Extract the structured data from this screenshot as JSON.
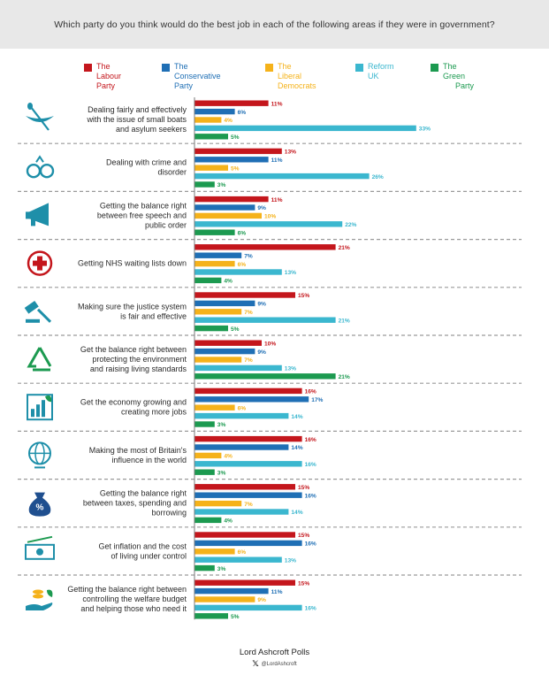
{
  "header": {
    "question": "Which party do you think would do the best job in each of the following areas if they were in government?"
  },
  "colors": {
    "labour": "#c4161c",
    "conservative": "#1f6fb5",
    "libdem": "#f5b21a",
    "reform": "#3bb7cf",
    "green": "#1c9a50",
    "icon": "#1e8fa9",
    "divider": "#9a9a9a"
  },
  "legend": [
    {
      "line1": "The Labour",
      "line2": "Party",
      "color": "#c4161c"
    },
    {
      "line1": "The Conservative",
      "line2": "Party",
      "color": "#1f6fb5"
    },
    {
      "line1": "The Liberal",
      "line2": "Democrats",
      "color": "#f5b21a"
    },
    {
      "line1": "Reform UK",
      "line2": "",
      "color": "#3bb7cf"
    },
    {
      "line1": "The Green",
      "line2": "Party",
      "color": "#1c9a50"
    }
  ],
  "chart_data": {
    "type": "bar",
    "orientation": "horizontal",
    "series_names": [
      "The Labour Party",
      "The Conservative Party",
      "The Liberal Democrats",
      "Reform UK",
      "The Green Party"
    ],
    "categories": [
      {
        "label": [
          "Dealing fairly and effectively",
          "with the issue of small boats",
          "and asylum seekers"
        ],
        "icon": "canoe-icon",
        "values": [
          11,
          6,
          4,
          33,
          5
        ]
      },
      {
        "label": [
          "Dealing with crime and",
          "disorder"
        ],
        "icon": "handcuffs-icon",
        "values": [
          13,
          11,
          5,
          26,
          3
        ]
      },
      {
        "label": [
          "Getting the balance right",
          "between free speech and",
          "public order"
        ],
        "icon": "megaphone-icon",
        "values": [
          11,
          9,
          10,
          22,
          6
        ]
      },
      {
        "label": [
          "Getting NHS waiting lists down"
        ],
        "icon": "medical-cross-icon",
        "values": [
          21,
          7,
          6,
          13,
          4
        ]
      },
      {
        "label": [
          "Making sure the justice system",
          "is fair and effective"
        ],
        "icon": "gavel-icon",
        "values": [
          15,
          9,
          7,
          21,
          5
        ]
      },
      {
        "label": [
          "Get the balance right between",
          "protecting the environment",
          "and raising living standards"
        ],
        "icon": "recycle-icon",
        "values": [
          10,
          9,
          7,
          13,
          21
        ]
      },
      {
        "label": [
          "Get the economy growing and",
          "creating more jobs"
        ],
        "icon": "growth-chart-icon",
        "values": [
          16,
          17,
          6,
          14,
          3
        ]
      },
      {
        "label": [
          "Making the most of Britain's",
          "influence in the world"
        ],
        "icon": "globe-icon",
        "values": [
          16,
          14,
          4,
          16,
          3
        ]
      },
      {
        "label": [
          "Getting the balance right",
          "between taxes, spending and",
          "borrowing"
        ],
        "icon": "tax-bag-icon",
        "values": [
          15,
          16,
          7,
          14,
          4
        ]
      },
      {
        "label": [
          "Get inflation and the cost",
          "of living under control"
        ],
        "icon": "banknote-icon",
        "values": [
          15,
          16,
          6,
          13,
          3
        ]
      },
      {
        "label": [
          "Getting the balance right between",
          "controlling the welfare budget",
          "and helping those who need it"
        ],
        "icon": "welfare-hand-icon",
        "values": [
          15,
          11,
          9,
          16,
          5
        ]
      }
    ],
    "value_suffix": "%",
    "xlim": [
      0,
      33
    ]
  },
  "footer": {
    "title": "Lord Ashcroft Polls",
    "handle": "@LordAshcroft",
    "x_glyph": "𝕏"
  }
}
